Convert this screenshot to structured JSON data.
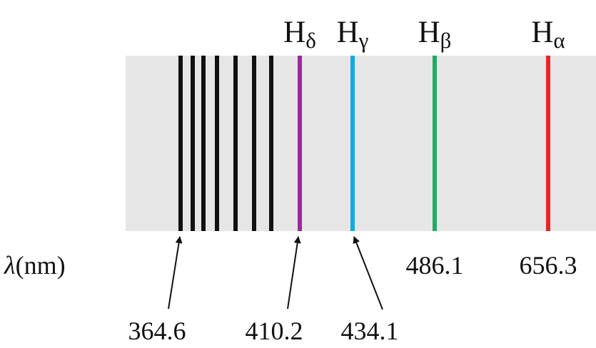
{
  "spectrum": {
    "background_color": "#e6e6e6",
    "axis_label": {
      "symbol": "λ",
      "unit": "(nm)"
    },
    "series_limit_lines": {
      "color": "#111111",
      "count": 7
    },
    "named_lines": [
      {
        "id": "h-delta",
        "name": "H",
        "subscript": "δ",
        "wavelength_label": "410.2",
        "color": "#9b2a9e",
        "label_placement": "arrow"
      },
      {
        "id": "h-gamma",
        "name": "H",
        "subscript": "γ",
        "wavelength_label": "434.1",
        "color": "#12a8e6",
        "label_placement": "arrow"
      },
      {
        "id": "h-beta",
        "name": "H",
        "subscript": "β",
        "wavelength_label": "486.1",
        "color": "#22aa63",
        "label_placement": "inline"
      },
      {
        "id": "h-alpha",
        "name": "H",
        "subscript": "α",
        "wavelength_label": "656.3",
        "color": "#e8262a",
        "label_placement": "inline"
      }
    ],
    "series_limit_label": "364.6"
  }
}
